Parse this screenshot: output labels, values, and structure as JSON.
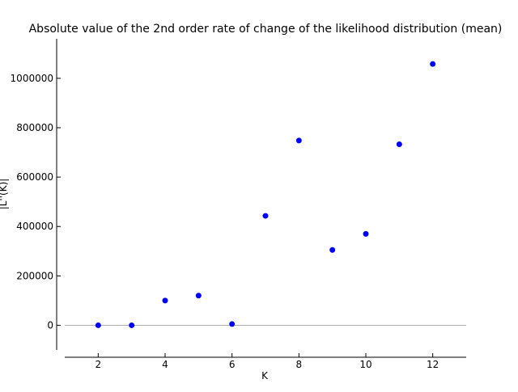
{
  "chart_data": {
    "type": "scatter",
    "title": "Absolute value of the 2nd order rate of change of the likelihood distribution (mean)",
    "xlabel": "K",
    "ylabel": "|L''(K)|",
    "xlim": [
      1,
      13
    ],
    "ylim": [
      -100000,
      1160000
    ],
    "xticks": [
      2,
      4,
      6,
      8,
      10,
      12
    ],
    "yticks": [
      0,
      200000,
      400000,
      600000,
      800000,
      1000000
    ],
    "zero_line": true,
    "grid": false,
    "series": [
      {
        "color": "#0000ff",
        "x": [
          2,
          3,
          4,
          5,
          6,
          7,
          8,
          9,
          10,
          11,
          12
        ],
        "y": [
          0,
          0,
          100000,
          120000,
          5000,
          443000,
          748000,
          305000,
          370000,
          733000,
          1058000
        ]
      }
    ]
  }
}
